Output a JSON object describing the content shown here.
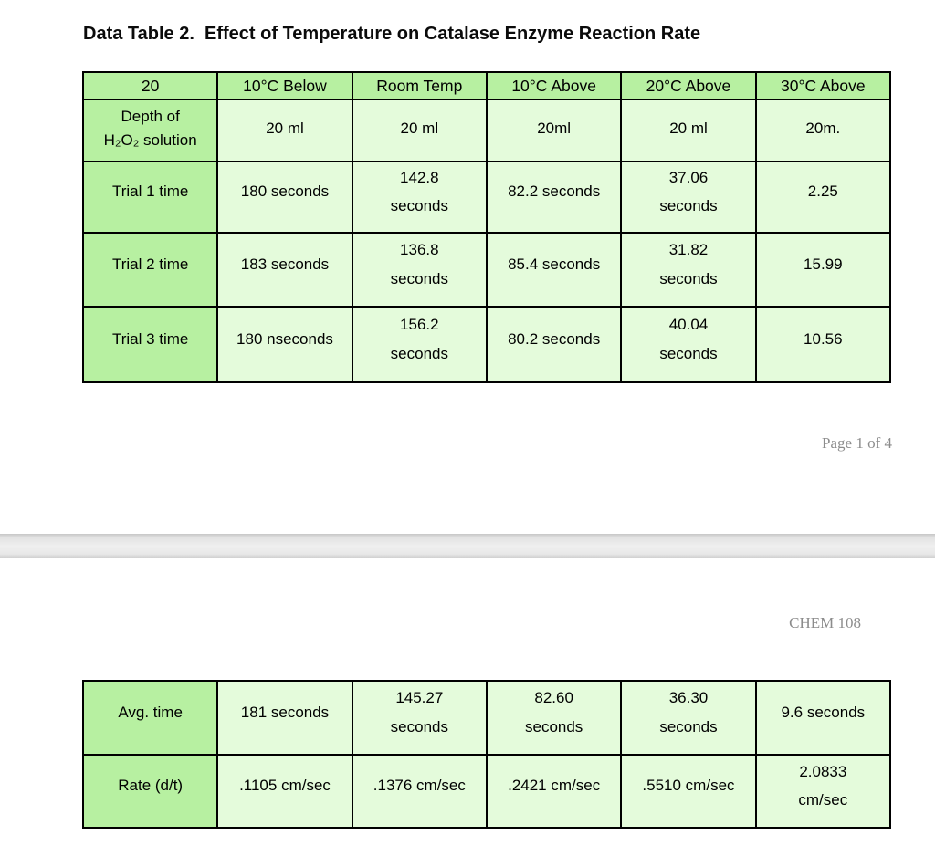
{
  "colors": {
    "header_green": "#b7f0a1",
    "cell_green": "#e4fbdb",
    "table_border": "#000000",
    "muted_text": "#8c8c8c",
    "page_break_band": "#e9e9e9"
  },
  "page1": {
    "title": "Data Table 2.  Effect of Temperature on Catalase Enzyme Reaction Rate",
    "page_number": "Page 1 of 4",
    "table": {
      "headers": [
        "20",
        "10°C Below",
        "Room Temp",
        "10°C Above",
        "20°C Above",
        "30°C Above"
      ],
      "rows": [
        {
          "label": "Depth of\nH₂O₂ solution",
          "values": [
            "20 ml",
            "20 ml",
            "20ml",
            "20 ml",
            "20m."
          ]
        },
        {
          "label": "Trial 1 time",
          "values": [
            "180 seconds",
            "142.8\nseconds",
            "82.2 seconds",
            "37.06\nseconds",
            "2.25"
          ]
        },
        {
          "label": "Trial 2 time",
          "values": [
            "183 seconds",
            "136.8\nseconds",
            "85.4 seconds",
            "31.82\nseconds",
            "15.99"
          ]
        },
        {
          "label": "Trial 3 time",
          "values": [
            "180 nseconds",
            "156.2\nseconds",
            "80.2 seconds",
            "40.04\nseconds",
            "10.56"
          ]
        }
      ]
    }
  },
  "page2": {
    "course_header": "CHEM 108",
    "table": {
      "rows": [
        {
          "label": "Avg. time",
          "values": [
            "181 seconds",
            "145.27\nseconds",
            "82.60\nseconds",
            "36.30\nseconds",
            "9.6 seconds"
          ]
        },
        {
          "label": "Rate (d/t)",
          "values": [
            ".1105 cm/sec",
            ".1376 cm/sec",
            ".2421 cm/sec",
            ".5510 cm/sec",
            "2.0833\ncm/sec"
          ]
        }
      ]
    }
  }
}
